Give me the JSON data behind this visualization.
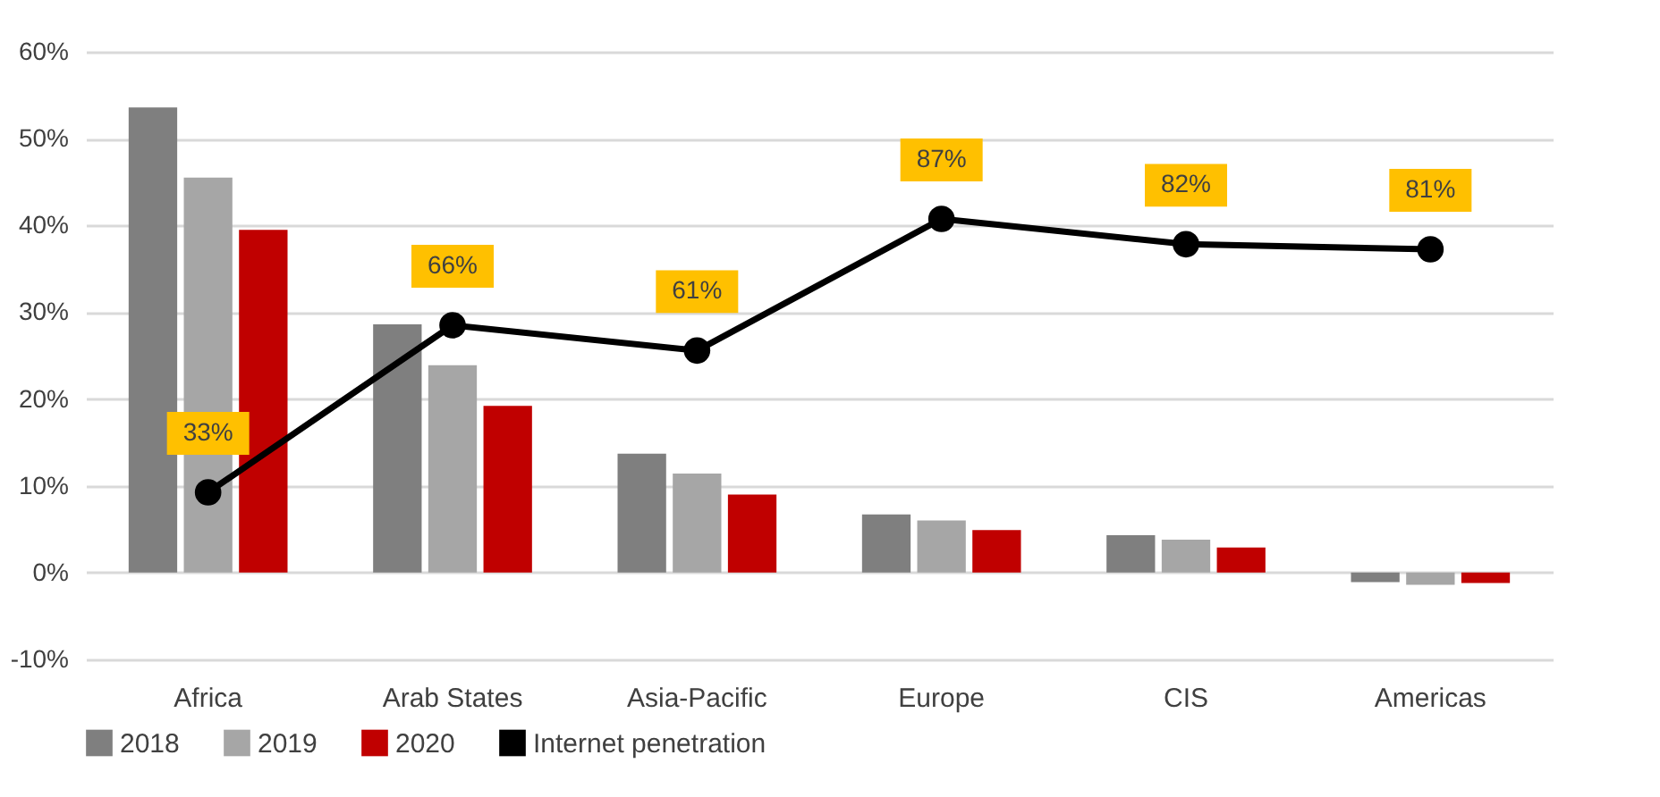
{
  "chart_data": {
    "type": "bar",
    "categories": [
      "Africa",
      "Arab States",
      "Asia-Pacific",
      "Europe",
      "CIS",
      "Americas"
    ],
    "series": [
      {
        "name": "2018",
        "color": "#7f7f7f",
        "values": [
          53.6,
          28.6,
          13.7,
          6.7,
          4.3,
          -1.1
        ]
      },
      {
        "name": "2019",
        "color": "#a6a6a6",
        "values": [
          45.5,
          23.9,
          11.4,
          6.0,
          3.8,
          -1.4
        ]
      },
      {
        "name": "2020",
        "color": "#c00000",
        "values": [
          39.5,
          19.2,
          9.0,
          4.9,
          2.9,
          -1.2
        ]
      },
      {
        "name": "Internet penetration",
        "type": "line",
        "axis": "y2",
        "color": "#000000",
        "marker": "circle",
        "values": [
          33,
          66,
          61,
          87,
          82,
          81
        ],
        "value_labels": [
          "33%",
          "66%",
          "61%",
          "87%",
          "82%",
          "81%"
        ]
      }
    ],
    "ylim": [
      -10,
      60
    ],
    "yticks": [
      {
        "value": -10,
        "label": "-10%"
      },
      {
        "value": 0,
        "label": "0%"
      },
      {
        "value": 10,
        "label": "10%"
      },
      {
        "value": 20,
        "label": "20%"
      },
      {
        "value": 30,
        "label": "30%"
      },
      {
        "value": 40,
        "label": "40%"
      },
      {
        "value": 50,
        "label": "50%"
      },
      {
        "value": 60,
        "label": "60%"
      }
    ],
    "y2lim": [
      0,
      120
    ],
    "grid": "y",
    "legend": "bottom"
  }
}
